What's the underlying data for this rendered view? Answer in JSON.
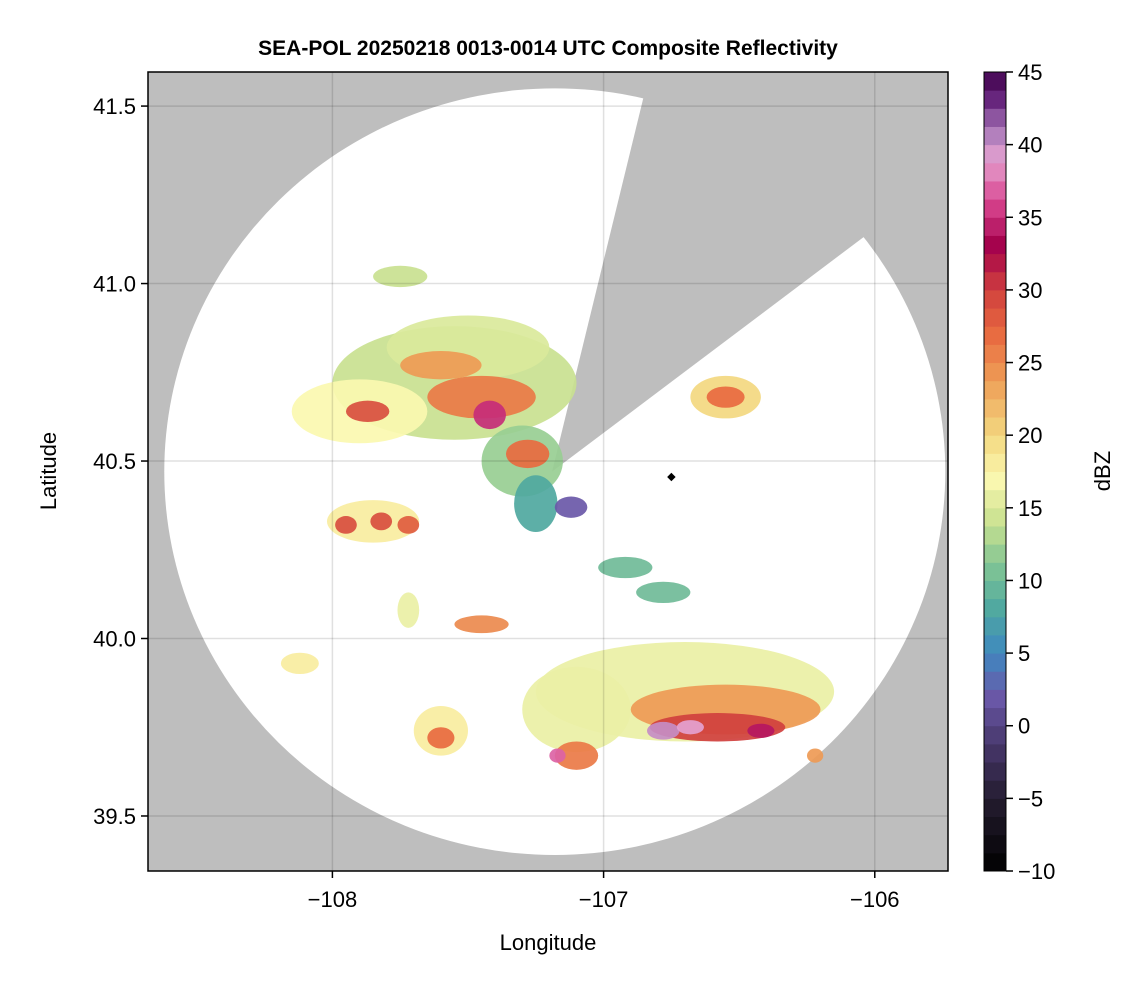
{
  "chart_data": {
    "type": "heatmap",
    "title": "SEA-POL 20250218 0013-0014 UTC Composite Reflectivity",
    "xlabel": "Longitude",
    "ylabel": "Latitude",
    "xlim": [
      -108.68,
      -105.73
    ],
    "ylim": [
      39.345,
      41.596
    ],
    "xticks": [
      -108,
      -107,
      -106
    ],
    "xtick_labels": [
      "−108",
      "−107",
      "−106"
    ],
    "yticks": [
      39.5,
      40.0,
      40.5,
      41.0,
      41.5
    ],
    "ytick_labels": [
      "39.5",
      "40.0",
      "40.5",
      "41.0",
      "41.5"
    ],
    "grid": true,
    "colorbar": {
      "label": "dBZ",
      "range": [
        -10,
        45
      ],
      "step": 1.25,
      "ticks": [
        -10,
        -5,
        0,
        5,
        10,
        15,
        20,
        25,
        30,
        35,
        40,
        45
      ],
      "tick_labels": [
        "−10",
        "−5",
        "0",
        "5",
        "10",
        "15",
        "20",
        "25",
        "30",
        "35",
        "40",
        "45"
      ],
      "stops": [
        [
          -10,
          "#000000"
        ],
        [
          -5,
          "#241c30"
        ],
        [
          -1,
          "#4a3a70"
        ],
        [
          2,
          "#6a58a8"
        ],
        [
          5,
          "#3f88c0"
        ],
        [
          8,
          "#4fa8a0"
        ],
        [
          11,
          "#80c494"
        ],
        [
          14,
          "#c9e190"
        ],
        [
          17,
          "#fbf8b0"
        ],
        [
          20,
          "#f3d880"
        ],
        [
          24,
          "#ee9a55"
        ],
        [
          27,
          "#e86a40"
        ],
        [
          30,
          "#d0403e"
        ],
        [
          33,
          "#a3004a"
        ],
        [
          36,
          "#d8448f"
        ],
        [
          39,
          "#e4a2d0"
        ],
        [
          41,
          "#a878b8"
        ],
        [
          43,
          "#6a2880"
        ],
        [
          45,
          "#40004b"
        ]
      ]
    },
    "missing_color": "#bebebe",
    "radar_coverage": {
      "center_lon": -107.18,
      "center_lat": 40.47,
      "radius_lon_deg": 1.44,
      "radius_lat_deg": 1.08
    },
    "blocked_sector": [
      [
        -107.19,
        40.47
      ],
      [
        -106.83,
        41.596
      ],
      [
        -105.73,
        41.596
      ],
      [
        -105.73,
        41.31
      ]
    ],
    "marker": {
      "lon": -106.75,
      "lat": 40.455
    },
    "echoes": [
      {
        "lon": -107.55,
        "lat": 40.72,
        "rx": 0.45,
        "ry": 0.16,
        "dbz": 14
      },
      {
        "lon": -107.9,
        "lat": 40.64,
        "rx": 0.25,
        "ry": 0.09,
        "dbz": 17
      },
      {
        "lon": -107.5,
        "lat": 40.82,
        "rx": 0.3,
        "ry": 0.09,
        "dbz": 15
      },
      {
        "lon": -107.3,
        "lat": 40.5,
        "rx": 0.15,
        "ry": 0.1,
        "dbz": 12
      },
      {
        "lon": -107.25,
        "lat": 40.38,
        "rx": 0.08,
        "ry": 0.08,
        "dbz": 8
      },
      {
        "lon": -107.75,
        "lat": 41.02,
        "rx": 0.1,
        "ry": 0.03,
        "dbz": 14
      },
      {
        "lon": -107.45,
        "lat": 40.68,
        "rx": 0.2,
        "ry": 0.06,
        "dbz": 26
      },
      {
        "lon": -107.6,
        "lat": 40.77,
        "rx": 0.15,
        "ry": 0.04,
        "dbz": 24
      },
      {
        "lon": -107.87,
        "lat": 40.64,
        "rx": 0.08,
        "ry": 0.03,
        "dbz": 29
      },
      {
        "lon": -107.42,
        "lat": 40.63,
        "rx": 0.06,
        "ry": 0.04,
        "dbz": 35
      },
      {
        "lon": -107.28,
        "lat": 40.52,
        "rx": 0.08,
        "ry": 0.04,
        "dbz": 27
      },
      {
        "lon": -107.12,
        "lat": 40.37,
        "rx": 0.06,
        "ry": 0.03,
        "dbz": 2
      },
      {
        "lon": -107.85,
        "lat": 40.33,
        "rx": 0.17,
        "ry": 0.06,
        "dbz": 18
      },
      {
        "lon": -107.95,
        "lat": 40.32,
        "rx": 0.04,
        "ry": 0.025,
        "dbz": 29
      },
      {
        "lon": -107.82,
        "lat": 40.33,
        "rx": 0.04,
        "ry": 0.025,
        "dbz": 29
      },
      {
        "lon": -107.72,
        "lat": 40.32,
        "rx": 0.04,
        "ry": 0.025,
        "dbz": 28
      },
      {
        "lon": -106.92,
        "lat": 40.2,
        "rx": 0.1,
        "ry": 0.03,
        "dbz": 10
      },
      {
        "lon": -106.78,
        "lat": 40.13,
        "rx": 0.1,
        "ry": 0.03,
        "dbz": 10
      },
      {
        "lon": -106.7,
        "lat": 39.85,
        "rx": 0.55,
        "ry": 0.14,
        "dbz": 16
      },
      {
        "lon": -107.1,
        "lat": 39.8,
        "rx": 0.2,
        "ry": 0.12,
        "dbz": 16
      },
      {
        "lon": -106.55,
        "lat": 39.8,
        "rx": 0.35,
        "ry": 0.07,
        "dbz": 24
      },
      {
        "lon": -106.58,
        "lat": 39.75,
        "rx": 0.25,
        "ry": 0.04,
        "dbz": 30
      },
      {
        "lon": -106.78,
        "lat": 39.74,
        "rx": 0.06,
        "ry": 0.025,
        "dbz": 40
      },
      {
        "lon": -106.68,
        "lat": 39.75,
        "rx": 0.05,
        "ry": 0.02,
        "dbz": 39
      },
      {
        "lon": -106.42,
        "lat": 39.74,
        "rx": 0.05,
        "ry": 0.02,
        "dbz": 34
      },
      {
        "lon": -106.22,
        "lat": 39.67,
        "rx": 0.03,
        "ry": 0.02,
        "dbz": 24
      },
      {
        "lon": -107.6,
        "lat": 39.74,
        "rx": 0.1,
        "ry": 0.07,
        "dbz": 18
      },
      {
        "lon": -107.6,
        "lat": 39.72,
        "rx": 0.05,
        "ry": 0.03,
        "dbz": 27
      },
      {
        "lon": -107.1,
        "lat": 39.67,
        "rx": 0.08,
        "ry": 0.04,
        "dbz": 26
      },
      {
        "lon": -107.17,
        "lat": 39.67,
        "rx": 0.03,
        "ry": 0.02,
        "dbz": 37
      },
      {
        "lon": -107.45,
        "lat": 40.04,
        "rx": 0.1,
        "ry": 0.025,
        "dbz": 25
      },
      {
        "lon": -108.12,
        "lat": 39.93,
        "rx": 0.07,
        "ry": 0.03,
        "dbz": 18
      },
      {
        "lon": -107.72,
        "lat": 40.08,
        "rx": 0.04,
        "ry": 0.05,
        "dbz": 16
      },
      {
        "lon": -106.55,
        "lat": 40.68,
        "rx": 0.13,
        "ry": 0.06,
        "dbz": 20
      },
      {
        "lon": -106.55,
        "lat": 40.68,
        "rx": 0.07,
        "ry": 0.03,
        "dbz": 27
      }
    ]
  }
}
